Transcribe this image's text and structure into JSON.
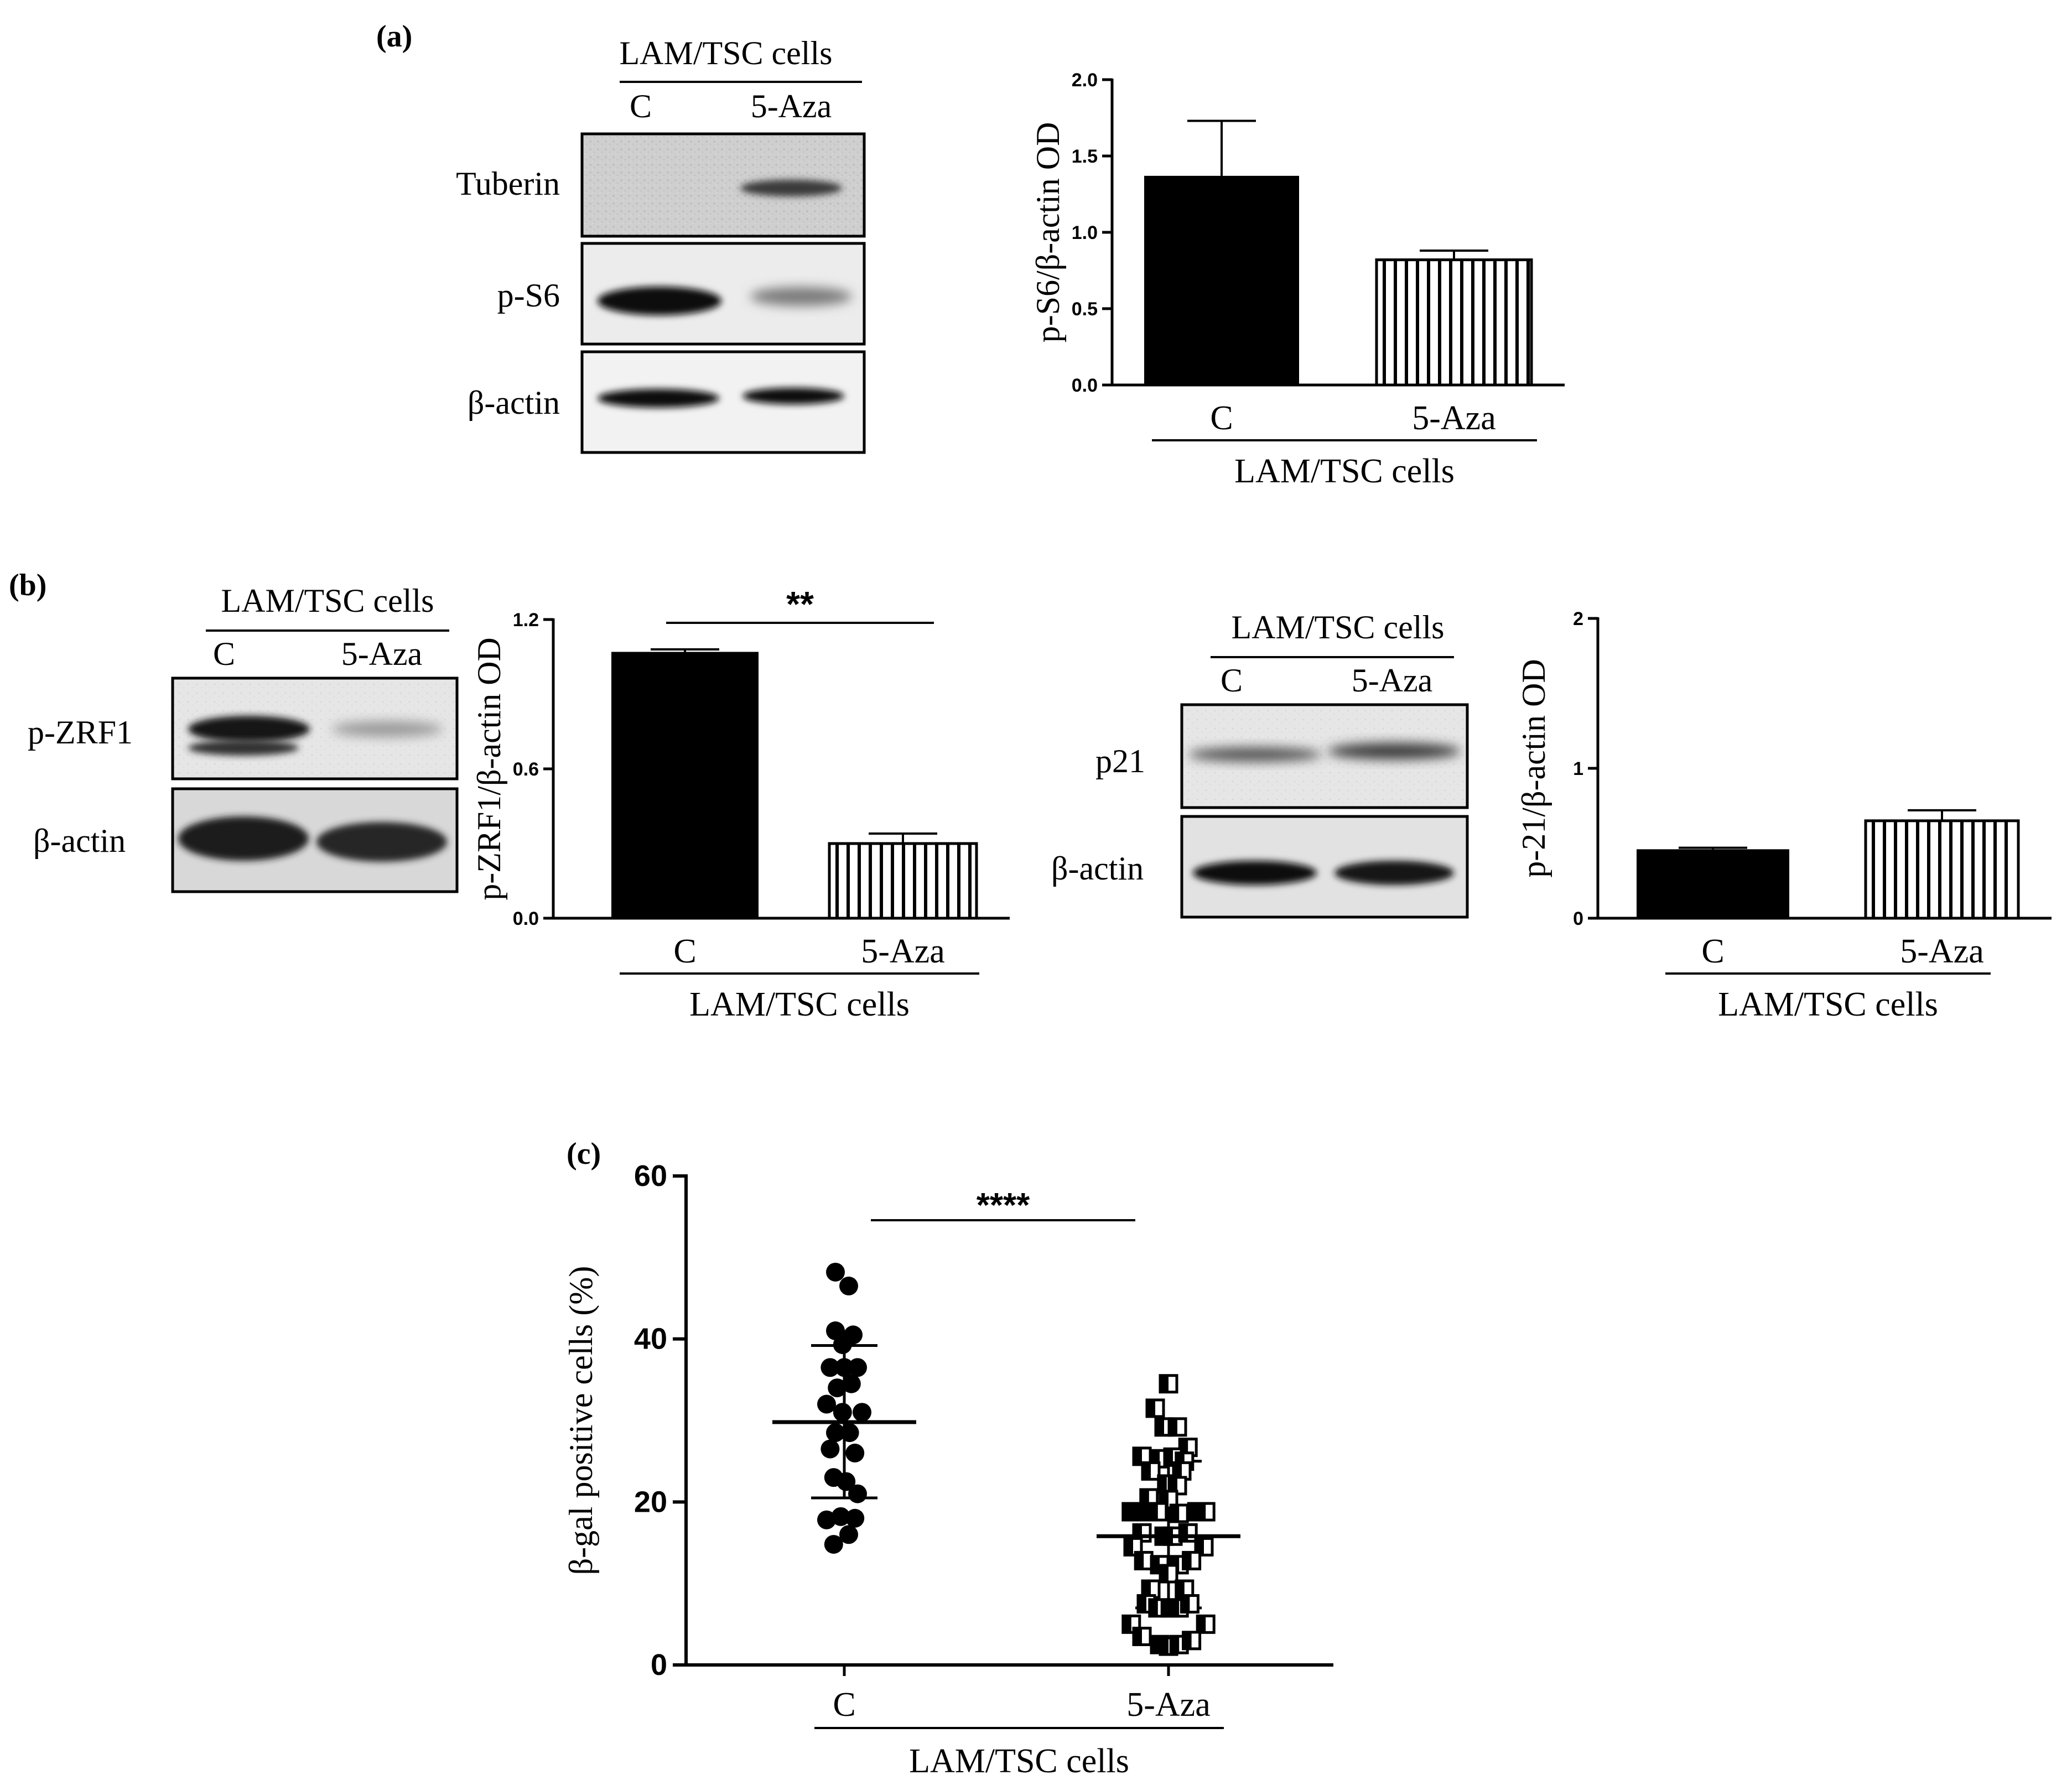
{
  "figure": {
    "panels": {
      "a": {
        "label": "(a)",
        "blot": {
          "group_label": "LAM/TSC cells",
          "lanes": [
            "C",
            "5-Aza"
          ],
          "rows": [
            "Tuberin",
            "p-S6",
            "β-actin"
          ]
        }
      },
      "b": {
        "label": "(b)",
        "blot_left": {
          "group_label": "LAM/TSC cells",
          "lanes": [
            "C",
            "5-Aza"
          ],
          "rows": [
            "p-ZRF1",
            "β-actin"
          ]
        },
        "blot_right": {
          "group_label": "LAM/TSC cells",
          "lanes": [
            "C",
            "5-Aza"
          ],
          "rows": [
            "p21",
            "β-actin"
          ]
        }
      },
      "c": {
        "label": "(c)"
      }
    }
  },
  "chart_data": [
    {
      "panel": "a",
      "type": "bar",
      "categories": [
        "C",
        "5-Aza"
      ],
      "values": [
        1.37,
        0.82
      ],
      "errors": [
        0.36,
        0.06
      ],
      "bar_styles": [
        "solid-black",
        "vertical-stripes"
      ],
      "ylabel": "p-S6/β-actin OD",
      "group_label": "LAM/TSC cells",
      "ylim": [
        0,
        2.0
      ],
      "yticks": [
        "0.0",
        "0.5",
        "1.0",
        "1.5",
        "2.0"
      ],
      "significance": ""
    },
    {
      "panel": "b-left",
      "type": "bar",
      "categories": [
        "C",
        "5-Aza"
      ],
      "values": [
        1.07,
        0.3
      ],
      "errors": [
        0.01,
        0.04
      ],
      "bar_styles": [
        "solid-black",
        "vertical-stripes"
      ],
      "ylabel": "p-ZRF1/β-actin OD",
      "group_label": "LAM/TSC cells",
      "ylim": [
        0,
        1.2
      ],
      "yticks": [
        "0.0",
        "0.6",
        "1.2"
      ],
      "significance": "**"
    },
    {
      "panel": "b-right",
      "type": "bar",
      "categories": [
        "C",
        "5-Aza"
      ],
      "values": [
        0.46,
        0.65
      ],
      "errors": [
        0.01,
        0.07
      ],
      "bar_styles": [
        "solid-black",
        "vertical-stripes"
      ],
      "ylabel": "p-21/β-actin OD",
      "group_label": "LAM/TSC cells",
      "ylim": [
        0,
        2
      ],
      "yticks": [
        "0",
        "1",
        "2"
      ],
      "significance": ""
    },
    {
      "panel": "c",
      "type": "scatter",
      "categories": [
        "C",
        "5-Aza"
      ],
      "ylabel": "β-gal positive cells (%)",
      "group_label": "LAM/TSC cells",
      "ylim": [
        0,
        60
      ],
      "yticks": [
        "0",
        "20",
        "40",
        "60"
      ],
      "significance": "****",
      "series": [
        {
          "category": "C",
          "marker": "filled-circle",
          "mean": 29.8,
          "sd_low": 20.5,
          "sd_high": 39.2,
          "points": [
            {
              "dx": -0.1,
              "y": 48.2
            },
            {
              "dx": 0.05,
              "y": 46.5
            },
            {
              "dx": -0.1,
              "y": 41.0
            },
            {
              "dx": 0.1,
              "y": 40.5
            },
            {
              "dx": -0.02,
              "y": 39.3
            },
            {
              "dx": -0.16,
              "y": 36.5
            },
            {
              "dx": 0.0,
              "y": 36.5
            },
            {
              "dx": 0.15,
              "y": 36.5
            },
            {
              "dx": -0.08,
              "y": 34.0
            },
            {
              "dx": 0.08,
              "y": 34.5
            },
            {
              "dx": -0.2,
              "y": 32.0
            },
            {
              "dx": -0.02,
              "y": 31.0
            },
            {
              "dx": 0.2,
              "y": 31.0
            },
            {
              "dx": -0.1,
              "y": 28.5
            },
            {
              "dx": 0.06,
              "y": 28.5
            },
            {
              "dx": -0.16,
              "y": 26.5
            },
            {
              "dx": 0.12,
              "y": 26.0
            },
            {
              "dx": -0.12,
              "y": 23.0
            },
            {
              "dx": 0.02,
              "y": 22.5
            },
            {
              "dx": 0.15,
              "y": 21.0
            },
            {
              "dx": -0.2,
              "y": 17.8
            },
            {
              "dx": -0.04,
              "y": 18.2
            },
            {
              "dx": 0.12,
              "y": 18.0
            },
            {
              "dx": 0.05,
              "y": 16.0
            },
            {
              "dx": -0.12,
              "y": 14.8
            }
          ]
        },
        {
          "category": "5-Aza",
          "marker": "half-filled-square",
          "mean": 15.8,
          "sd_low": 7.0,
          "sd_high": 25.0,
          "points": [
            {
              "dx": 0.0,
              "y": 34.5
            },
            {
              "dx": -0.15,
              "y": 31.5
            },
            {
              "dx": -0.05,
              "y": 29.2
            },
            {
              "dx": 0.1,
              "y": 29.2
            },
            {
              "dx": 0.22,
              "y": 26.7
            },
            {
              "dx": -0.3,
              "y": 25.6
            },
            {
              "dx": -0.1,
              "y": 25.3
            },
            {
              "dx": 0.05,
              "y": 25.5
            },
            {
              "dx": 0.18,
              "y": 25.0
            },
            {
              "dx": -0.2,
              "y": 23.8
            },
            {
              "dx": 0.15,
              "y": 23.8
            },
            {
              "dx": -0.02,
              "y": 22.2
            },
            {
              "dx": 0.1,
              "y": 22.0
            },
            {
              "dx": -0.22,
              "y": 20.5
            },
            {
              "dx": 0.0,
              "y": 20.3
            },
            {
              "dx": -0.42,
              "y": 18.8
            },
            {
              "dx": -0.32,
              "y": 18.8
            },
            {
              "dx": -0.22,
              "y": 18.8
            },
            {
              "dx": -0.12,
              "y": 18.8
            },
            {
              "dx": 0.12,
              "y": 18.6
            },
            {
              "dx": 0.32,
              "y": 18.8
            },
            {
              "dx": 0.42,
              "y": 18.8
            },
            {
              "dx": -0.3,
              "y": 16.2
            },
            {
              "dx": -0.05,
              "y": 15.8
            },
            {
              "dx": 0.05,
              "y": 15.8
            },
            {
              "dx": 0.22,
              "y": 16.2
            },
            {
              "dx": -0.4,
              "y": 14.5
            },
            {
              "dx": 0.4,
              "y": 14.5
            },
            {
              "dx": -0.28,
              "y": 12.8
            },
            {
              "dx": -0.1,
              "y": 12.3
            },
            {
              "dx": 0.12,
              "y": 12.3
            },
            {
              "dx": 0.26,
              "y": 12.8
            },
            {
              "dx": 0.0,
              "y": 11.2
            },
            {
              "dx": -0.2,
              "y": 9.3
            },
            {
              "dx": 0.18,
              "y": 9.3
            },
            {
              "dx": -0.25,
              "y": 7.5
            },
            {
              "dx": -0.12,
              "y": 7.0
            },
            {
              "dx": 0.02,
              "y": 7.0
            },
            {
              "dx": 0.12,
              "y": 7.0
            },
            {
              "dx": 0.24,
              "y": 7.5
            },
            {
              "dx": -0.42,
              "y": 5.0
            },
            {
              "dx": 0.42,
              "y": 5.0
            },
            {
              "dx": -0.3,
              "y": 3.5
            },
            {
              "dx": -0.1,
              "y": 2.5
            },
            {
              "dx": 0.0,
              "y": 2.3
            },
            {
              "dx": 0.12,
              "y": 2.5
            },
            {
              "dx": 0.26,
              "y": 3.0
            }
          ]
        }
      ]
    }
  ]
}
